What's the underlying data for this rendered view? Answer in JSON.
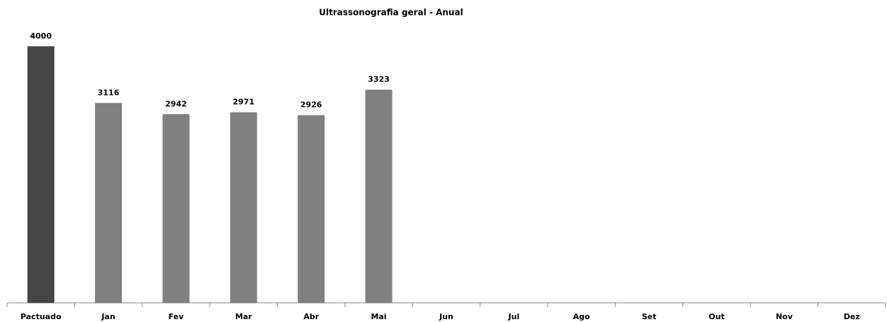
{
  "chart_data": {
    "type": "bar",
    "title": "Ultrassonografia geral - Anual",
    "categories": [
      "Pactuado",
      "Jan",
      "Fev",
      "Mar",
      "Abr",
      "Mai",
      "Jun",
      "Jul",
      "Ago",
      "Set",
      "Out",
      "Nov",
      "Dez"
    ],
    "values": [
      4000,
      3116,
      2942,
      2971,
      2926,
      3323,
      null,
      null,
      null,
      null,
      null,
      null,
      null
    ],
    "colors": [
      "#454545",
      "#808080",
      "#808080",
      "#808080",
      "#808080",
      "#808080",
      "#808080",
      "#808080",
      "#808080",
      "#808080",
      "#808080",
      "#808080",
      "#808080"
    ],
    "ylim": [
      0,
      4500
    ]
  }
}
